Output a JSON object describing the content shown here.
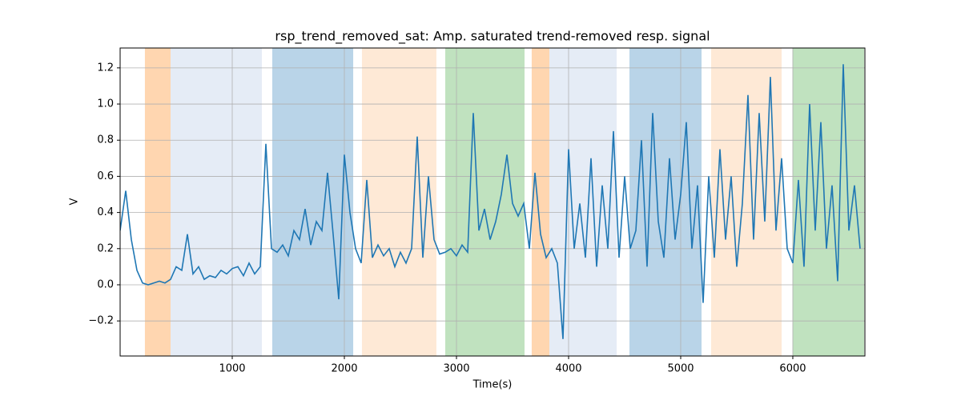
{
  "chart_data": {
    "type": "line",
    "title": "rsp_trend_removed_sat: Amp. saturated trend-removed resp. signal",
    "x_label": "Time(s)",
    "y_label": "V",
    "xlim": [
      0,
      6643
    ],
    "ylim": [
      -0.394,
      1.31
    ],
    "xticks": [
      1000,
      2000,
      3000,
      4000,
      5000,
      6000
    ],
    "yticks": [
      {
        "value": -0.2,
        "label": "−0.2"
      },
      {
        "value": 0,
        "label": "0.0"
      },
      0.2,
      0.4,
      0.6,
      0.8,
      {
        "value": 1,
        "label": "1.0"
      },
      1.2
    ],
    "grid": true,
    "spans": [
      {
        "start": 221,
        "end": 450,
        "color": "#ffd6b0"
      },
      {
        "start": 450,
        "end": 1264,
        "color": "#e5ecf6"
      },
      {
        "start": 1357,
        "end": 2079,
        "color": "#b9d4e8"
      },
      {
        "start": 2157,
        "end": 2821,
        "color": "#fee9d6"
      },
      {
        "start": 2900,
        "end": 3607,
        "color": "#c0e2bf"
      },
      {
        "start": 3671,
        "end": 3829,
        "color": "#ffd6b0"
      },
      {
        "start": 3829,
        "end": 4429,
        "color": "#e5ecf6"
      },
      {
        "start": 4543,
        "end": 5186,
        "color": "#b9d4e8"
      },
      {
        "start": 5271,
        "end": 5900,
        "color": "#fee9d6"
      },
      {
        "start": 6000,
        "end": 6636,
        "color": "#c0e2bf"
      }
    ],
    "x": [
      0,
      50,
      100,
      150,
      200,
      250,
      300,
      350,
      400,
      450,
      500,
      550,
      600,
      650,
      700,
      750,
      800,
      850,
      900,
      950,
      1000,
      1050,
      1100,
      1150,
      1200,
      1250,
      1300,
      1350,
      1400,
      1450,
      1500,
      1550,
      1600,
      1650,
      1700,
      1750,
      1800,
      1850,
      1900,
      1950,
      2000,
      2050,
      2100,
      2150,
      2200,
      2250,
      2300,
      2350,
      2400,
      2450,
      2500,
      2550,
      2600,
      2650,
      2700,
      2750,
      2800,
      2850,
      2900,
      2950,
      3000,
      3050,
      3100,
      3150,
      3200,
      3250,
      3300,
      3350,
      3400,
      3450,
      3500,
      3550,
      3600,
      3650,
      3700,
      3750,
      3800,
      3850,
      3900,
      3950,
      4000,
      4050,
      4100,
      4150,
      4200,
      4250,
      4300,
      4350,
      4400,
      4450,
      4500,
      4550,
      4600,
      4650,
      4700,
      4750,
      4800,
      4850,
      4900,
      4950,
      5000,
      5050,
      5100,
      5150,
      5200,
      5250,
      5300,
      5350,
      5400,
      5450,
      5500,
      5550,
      5600,
      5650,
      5700,
      5750,
      5800,
      5850,
      5900,
      5950,
      6000,
      6050,
      6100,
      6150,
      6200,
      6250,
      6300,
      6350,
      6400,
      6450,
      6500,
      6550,
      6600
    ],
    "series": [
      {
        "color": "#1f77b4",
        "values": [
          0.3,
          0.52,
          0.25,
          0.08,
          0.01,
          0.0,
          0.01,
          0.02,
          0.01,
          0.03,
          0.1,
          0.08,
          0.28,
          0.06,
          0.1,
          0.03,
          0.05,
          0.04,
          0.08,
          0.06,
          0.09,
          0.1,
          0.05,
          0.12,
          0.06,
          0.1,
          0.78,
          0.2,
          0.18,
          0.22,
          0.16,
          0.3,
          0.25,
          0.42,
          0.22,
          0.35,
          0.3,
          0.62,
          0.28,
          -0.08,
          0.72,
          0.4,
          0.2,
          0.12,
          0.58,
          0.15,
          0.22,
          0.16,
          0.2,
          0.1,
          0.18,
          0.12,
          0.2,
          0.82,
          0.15,
          0.6,
          0.25,
          0.17,
          0.18,
          0.2,
          0.16,
          0.22,
          0.18,
          0.95,
          0.3,
          0.42,
          0.25,
          0.35,
          0.5,
          0.72,
          0.45,
          0.38,
          0.45,
          0.2,
          0.62,
          0.28,
          0.15,
          0.2,
          0.12,
          -0.3,
          0.75,
          0.2,
          0.45,
          0.15,
          0.7,
          0.1,
          0.55,
          0.2,
          0.85,
          0.15,
          0.6,
          0.2,
          0.3,
          0.8,
          0.1,
          0.95,
          0.35,
          0.15,
          0.7,
          0.25,
          0.5,
          0.9,
          0.2,
          0.55,
          -0.1,
          0.6,
          0.15,
          0.75,
          0.25,
          0.6,
          0.1,
          0.45,
          1.05,
          0.25,
          0.95,
          0.35,
          1.15,
          0.3,
          0.7,
          0.2,
          0.12,
          0.58,
          0.1,
          1.0,
          0.3,
          0.9,
          0.2,
          0.55,
          0.02,
          1.22,
          0.3,
          0.55,
          0.2
        ]
      }
    ]
  }
}
